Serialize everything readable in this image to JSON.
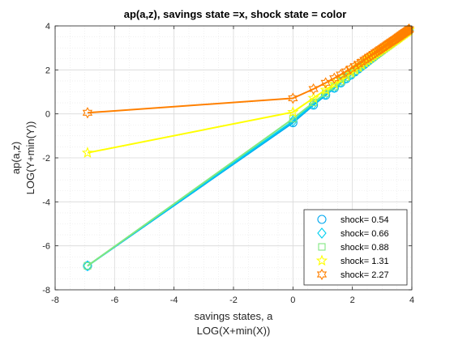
{
  "chart_data": {
    "type": "line",
    "title": "ap(a,z), savings state =x, shock state = color",
    "xlabel": [
      "savings states, a",
      "LOG(X+min(X))"
    ],
    "ylabel": [
      "ap(a,z)",
      "LOG(Y+min(Y))"
    ],
    "xlim": [
      -8,
      4
    ],
    "ylim": [
      -8,
      4
    ],
    "xticks": [
      -8,
      -6,
      -4,
      -2,
      0,
      2,
      4
    ],
    "yticks": [
      -8,
      -6,
      -4,
      -2,
      0,
      2,
      4
    ],
    "xtick_labels": [
      "-8",
      "-6",
      "-4",
      "-2",
      "0",
      "2",
      "4"
    ],
    "ytick_labels": [
      "-8",
      "-6",
      "-4",
      "-2",
      "0",
      "2",
      "4"
    ],
    "grid": true,
    "minor_grid": true,
    "legend_position": "bottom-right",
    "series": [
      {
        "name": "shock=  0.54",
        "color": "#00A8F0",
        "marker": "circle",
        "x": [
          -6.91,
          0.0,
          0.69,
          1.1,
          1.39,
          1.61,
          1.79,
          1.95,
          2.08,
          2.2,
          2.3,
          2.4,
          2.48,
          2.56,
          2.64,
          2.71,
          2.77,
          2.83,
          2.89,
          2.94,
          3.0,
          3.04,
          3.09,
          3.14,
          3.18,
          3.22,
          3.26,
          3.3,
          3.33,
          3.37,
          3.4,
          3.43,
          3.47,
          3.5,
          3.53,
          3.56,
          3.58,
          3.61,
          3.64,
          3.66,
          3.69,
          3.71,
          3.74,
          3.76,
          3.78,
          3.81,
          3.83,
          3.85,
          3.87,
          3.89,
          3.91
        ],
        "y": [
          -6.91,
          -0.4,
          0.4,
          0.85,
          1.17,
          1.41,
          1.6,
          1.77,
          1.91,
          2.04,
          2.15,
          2.25,
          2.34,
          2.43,
          2.51,
          2.58,
          2.65,
          2.71,
          2.77,
          2.82,
          2.88,
          2.93,
          2.97,
          3.02,
          3.06,
          3.1,
          3.14,
          3.18,
          3.22,
          3.25,
          3.29,
          3.32,
          3.35,
          3.38,
          3.41,
          3.44,
          3.47,
          3.5,
          3.52,
          3.55,
          3.57,
          3.6,
          3.62,
          3.65,
          3.67,
          3.69,
          3.71,
          3.73,
          3.75,
          3.78,
          3.8
        ]
      },
      {
        "name": "shock=  0.66",
        "color": "#00D0F0",
        "marker": "diamond",
        "x": [
          -6.91,
          0.0,
          0.69,
          1.1,
          1.39,
          1.61,
          1.79,
          1.95,
          2.08,
          2.2,
          2.3,
          2.4,
          2.48,
          2.56,
          2.64,
          2.71,
          2.77,
          2.83,
          2.89,
          2.94,
          3.0,
          3.04,
          3.09,
          3.14,
          3.18,
          3.22,
          3.26,
          3.3,
          3.33,
          3.37,
          3.4,
          3.43,
          3.47,
          3.5,
          3.53,
          3.56,
          3.58,
          3.61,
          3.64,
          3.66,
          3.69,
          3.71,
          3.74,
          3.76,
          3.78,
          3.81,
          3.83,
          3.85,
          3.87,
          3.89,
          3.91
        ],
        "y": [
          -6.91,
          -0.33,
          0.45,
          0.89,
          1.2,
          1.44,
          1.63,
          1.79,
          1.93,
          2.06,
          2.17,
          2.27,
          2.36,
          2.45,
          2.52,
          2.6,
          2.66,
          2.72,
          2.78,
          2.84,
          2.89,
          2.94,
          2.98,
          3.03,
          3.07,
          3.11,
          3.15,
          3.19,
          3.23,
          3.26,
          3.3,
          3.33,
          3.36,
          3.39,
          3.42,
          3.45,
          3.48,
          3.51,
          3.53,
          3.56,
          3.58,
          3.61,
          3.63,
          3.66,
          3.68,
          3.7,
          3.72,
          3.74,
          3.76,
          3.78,
          3.81
        ]
      },
      {
        "name": "shock=  0.88",
        "color": "#80E880",
        "marker": "square",
        "x": [
          -6.91,
          0.0,
          0.69,
          1.1,
          1.39,
          1.61,
          1.79,
          1.95,
          2.08,
          2.2,
          2.3,
          2.4,
          2.48,
          2.56,
          2.64,
          2.71,
          2.77,
          2.83,
          2.89,
          2.94,
          3.0,
          3.04,
          3.09,
          3.14,
          3.18,
          3.22,
          3.26,
          3.3,
          3.33,
          3.37,
          3.4,
          3.43,
          3.47,
          3.5,
          3.53,
          3.56,
          3.58,
          3.61,
          3.64,
          3.66,
          3.69,
          3.71,
          3.74,
          3.76,
          3.78,
          3.81,
          3.83,
          3.85,
          3.87,
          3.89,
          3.91
        ],
        "y": [
          -6.91,
          -0.22,
          0.52,
          0.94,
          1.24,
          1.47,
          1.66,
          1.82,
          1.96,
          2.08,
          2.19,
          2.29,
          2.38,
          2.46,
          2.54,
          2.61,
          2.68,
          2.74,
          2.8,
          2.85,
          2.9,
          2.95,
          3.0,
          3.04,
          3.08,
          3.12,
          3.16,
          3.2,
          3.24,
          3.27,
          3.31,
          3.34,
          3.37,
          3.4,
          3.43,
          3.46,
          3.49,
          3.52,
          3.54,
          3.57,
          3.59,
          3.62,
          3.64,
          3.67,
          3.69,
          3.71,
          3.73,
          3.75,
          3.77,
          3.79,
          3.82
        ]
      },
      {
        "name": "shock=  1.31",
        "color": "#FFFF00",
        "marker": "pentagram",
        "x": [
          -6.91,
          0.0,
          0.69,
          1.1,
          1.39,
          1.61,
          1.79,
          1.95,
          2.08,
          2.2,
          2.3,
          2.4,
          2.48,
          2.56,
          2.64,
          2.71,
          2.77,
          2.83,
          2.89,
          2.94,
          3.0,
          3.04,
          3.09,
          3.14,
          3.18,
          3.22,
          3.26,
          3.3,
          3.33,
          3.37,
          3.4,
          3.43,
          3.47,
          3.5,
          3.53,
          3.56,
          3.58,
          3.61,
          3.64,
          3.66,
          3.69,
          3.71,
          3.74,
          3.76,
          3.78,
          3.81,
          3.83,
          3.85,
          3.87,
          3.89,
          3.91
        ],
        "y": [
          -1.77,
          0.08,
          0.72,
          1.09,
          1.36,
          1.57,
          1.74,
          1.89,
          2.02,
          2.14,
          2.24,
          2.34,
          2.42,
          2.5,
          2.57,
          2.64,
          2.71,
          2.77,
          2.82,
          2.88,
          2.93,
          2.97,
          3.02,
          3.06,
          3.1,
          3.14,
          3.18,
          3.22,
          3.25,
          3.29,
          3.32,
          3.35,
          3.38,
          3.41,
          3.44,
          3.47,
          3.5,
          3.53,
          3.55,
          3.58,
          3.6,
          3.63,
          3.65,
          3.68,
          3.7,
          3.72,
          3.74,
          3.76,
          3.78,
          3.8,
          3.83
        ]
      },
      {
        "name": "shock=  2.27",
        "color": "#FF8000",
        "marker": "hexagram",
        "x": [
          -6.91,
          0.0,
          0.69,
          1.1,
          1.39,
          1.61,
          1.79,
          1.95,
          2.08,
          2.2,
          2.3,
          2.4,
          2.48,
          2.56,
          2.64,
          2.71,
          2.77,
          2.83,
          2.89,
          2.94,
          3.0,
          3.04,
          3.09,
          3.14,
          3.18,
          3.22,
          3.26,
          3.3,
          3.33,
          3.37,
          3.4,
          3.43,
          3.47,
          3.5,
          3.53,
          3.56,
          3.58,
          3.61,
          3.64,
          3.66,
          3.69,
          3.71,
          3.74,
          3.76,
          3.78,
          3.81,
          3.83,
          3.85,
          3.87,
          3.89,
          3.91
        ],
        "y": [
          0.05,
          0.71,
          1.13,
          1.41,
          1.62,
          1.79,
          1.93,
          2.06,
          2.17,
          2.27,
          2.36,
          2.45,
          2.52,
          2.6,
          2.66,
          2.73,
          2.79,
          2.84,
          2.89,
          2.94,
          2.99,
          3.03,
          3.08,
          3.12,
          3.16,
          3.2,
          3.23,
          3.27,
          3.3,
          3.33,
          3.36,
          3.39,
          3.42,
          3.45,
          3.48,
          3.51,
          3.53,
          3.56,
          3.58,
          3.61,
          3.63,
          3.66,
          3.68,
          3.7,
          3.72,
          3.74,
          3.76,
          3.78,
          3.8,
          3.82,
          3.85
        ]
      }
    ]
  }
}
